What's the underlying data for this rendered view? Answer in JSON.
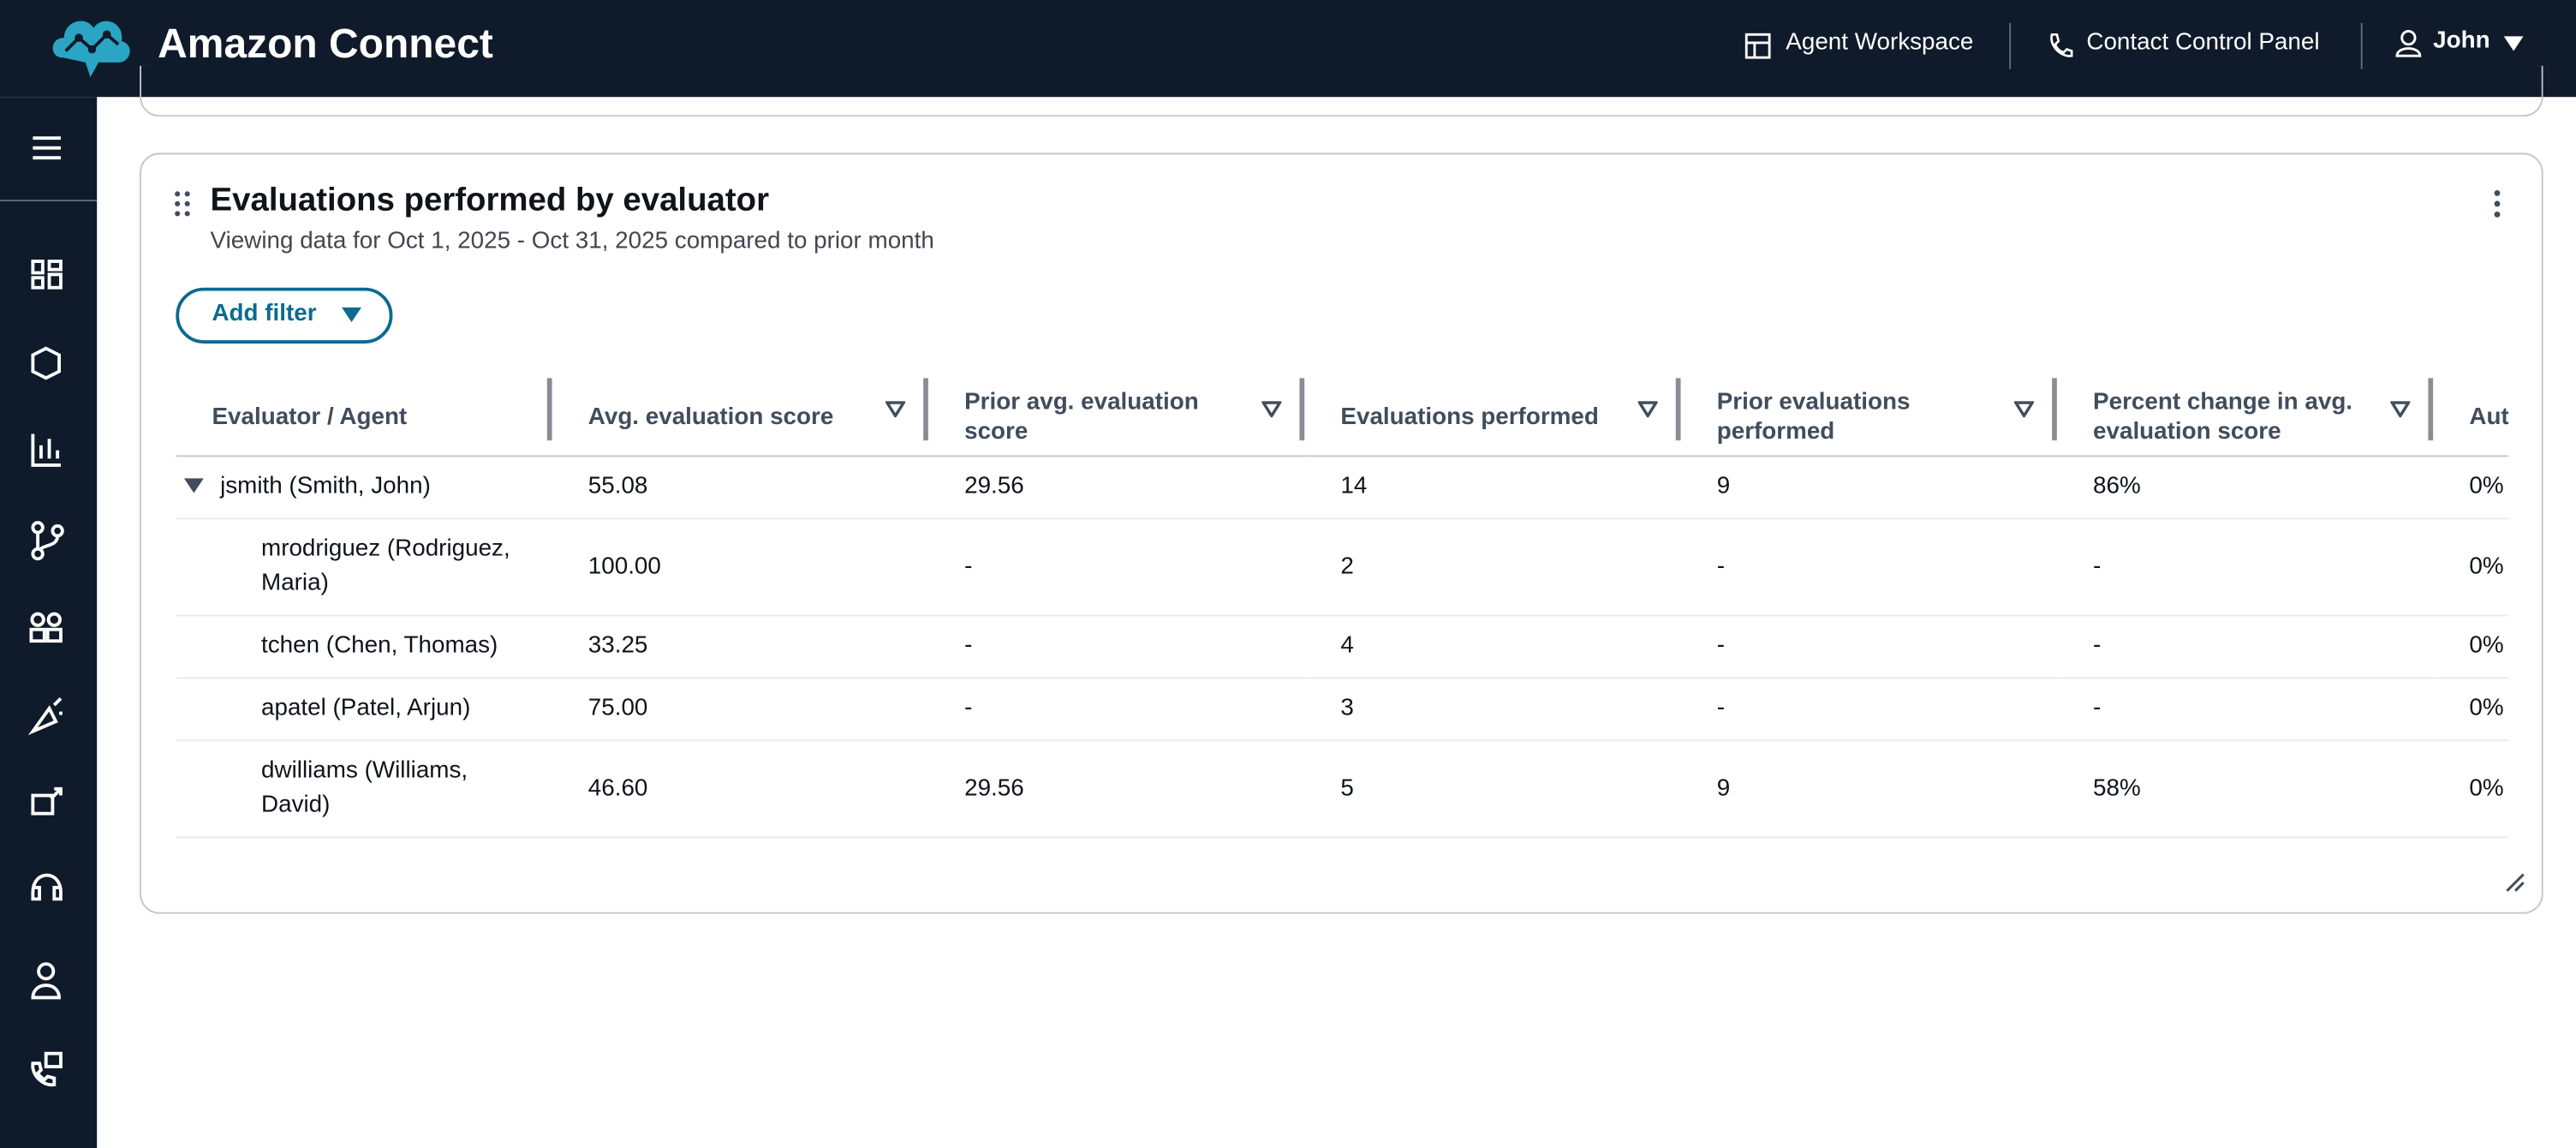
{
  "header": {
    "title": "Amazon Connect",
    "links": [
      "Agent Workspace",
      "Contact Control Panel"
    ],
    "user": "John"
  },
  "card": {
    "title": "Evaluations performed by evaluator",
    "subtitle": "Viewing data for Oct 1, 2025 - Oct 31, 2025 compared to prior month",
    "filter_button": "Add filter"
  },
  "table": {
    "columns": [
      "Evaluator / Agent",
      "Avg. evaluation score",
      "Prior avg. evaluation score",
      "Evaluations performed",
      "Prior evaluations performed",
      "Percent change in avg. evaluation score",
      "Aut"
    ],
    "rows": [
      [
        "jsmith (Smith, John)",
        "55.08",
        "29.56",
        "14",
        "9",
        "86%",
        "0%"
      ],
      [
        "mrodriguez (Rodriguez, Maria)",
        "100.00",
        "-",
        "2",
        "-",
        "-",
        "0%"
      ],
      [
        "tchen (Chen, Thomas)",
        "33.25",
        "-",
        "4",
        "-",
        "-",
        "0%"
      ],
      [
        "apatel (Patel, Arjun)",
        "75.00",
        "-",
        "3",
        "-",
        "-",
        "0%"
      ],
      [
        "dwilliams (Williams, David)",
        "46.60",
        "29.56",
        "5",
        "9",
        "58%",
        "0%"
      ]
    ]
  }
}
